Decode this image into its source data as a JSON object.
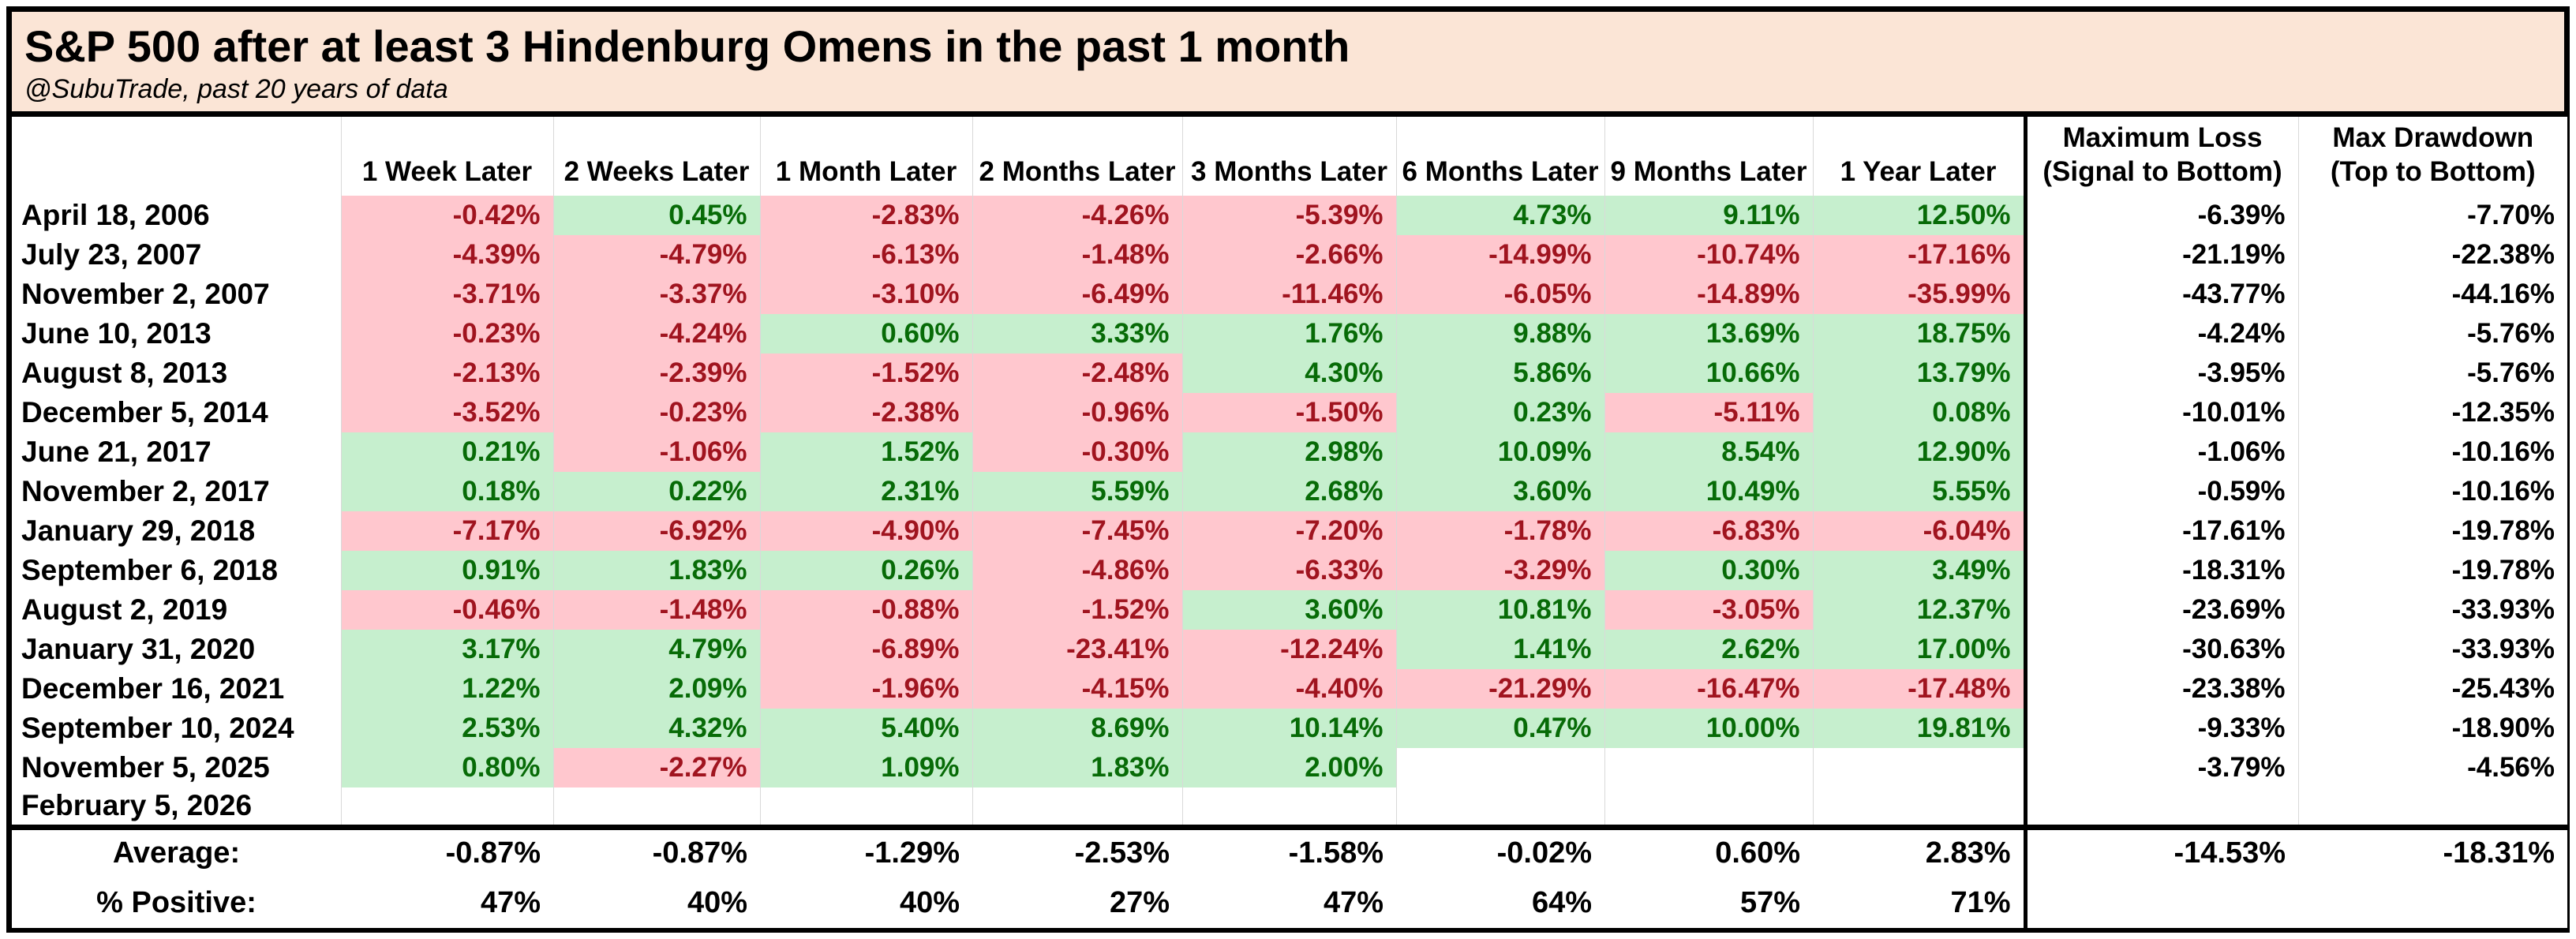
{
  "chart_data": {
    "type": "table",
    "title": "S&P 500 after at least 3 Hindenburg Omens in the past 1 month",
    "subtitle": "@SubuTrade, past 20 years of data",
    "date_column_header": "",
    "period_headers": [
      "1 Week Later",
      "2 Weeks Later",
      "1 Month Later",
      "2 Months Later",
      "3 Months Later",
      "6 Months Later",
      "9 Months Later",
      "1 Year Later"
    ],
    "loss_headers": [
      {
        "line1": "Maximum Loss",
        "line2": "(Signal to Bottom)"
      },
      {
        "line1": "Max Drawdown",
        "line2": "(Top to Bottom)"
      }
    ],
    "rows": [
      {
        "date": "April 18, 2006",
        "returns": [
          -0.42,
          0.45,
          -2.83,
          -4.26,
          -5.39,
          4.73,
          9.11,
          12.5
        ],
        "max_loss": -6.39,
        "max_drawdown": -7.7
      },
      {
        "date": "July 23, 2007",
        "returns": [
          -4.39,
          -4.79,
          -6.13,
          -1.48,
          -2.66,
          -14.99,
          -10.74,
          -17.16
        ],
        "max_loss": -21.19,
        "max_drawdown": -22.38
      },
      {
        "date": "November 2, 2007",
        "returns": [
          -3.71,
          -3.37,
          -3.1,
          -6.49,
          -11.46,
          -6.05,
          -14.89,
          -35.99
        ],
        "max_loss": -43.77,
        "max_drawdown": -44.16
      },
      {
        "date": "June 10, 2013",
        "returns": [
          -0.23,
          -4.24,
          0.6,
          3.33,
          1.76,
          9.88,
          13.69,
          18.75
        ],
        "max_loss": -4.24,
        "max_drawdown": -5.76
      },
      {
        "date": "August 8, 2013",
        "returns": [
          -2.13,
          -2.39,
          -1.52,
          -2.48,
          4.3,
          5.86,
          10.66,
          13.79
        ],
        "max_loss": -3.95,
        "max_drawdown": -5.76
      },
      {
        "date": "December 5, 2014",
        "returns": [
          -3.52,
          -0.23,
          -2.38,
          -0.96,
          -1.5,
          0.23,
          -5.11,
          0.08
        ],
        "max_loss": -10.01,
        "max_drawdown": -12.35
      },
      {
        "date": "June 21, 2017",
        "returns": [
          0.21,
          -1.06,
          1.52,
          -0.3,
          2.98,
          10.09,
          8.54,
          12.9
        ],
        "max_loss": -1.06,
        "max_drawdown": -10.16
      },
      {
        "date": "November 2, 2017",
        "returns": [
          0.18,
          0.22,
          2.31,
          5.59,
          2.68,
          3.6,
          10.49,
          5.55
        ],
        "max_loss": -0.59,
        "max_drawdown": -10.16
      },
      {
        "date": "January 29, 2018",
        "returns": [
          -7.17,
          -6.92,
          -4.9,
          -7.45,
          -7.2,
          -1.78,
          -6.83,
          -6.04
        ],
        "max_loss": -17.61,
        "max_drawdown": -19.78
      },
      {
        "date": "September 6, 2018",
        "returns": [
          0.91,
          1.83,
          0.26,
          -4.86,
          -6.33,
          -3.29,
          0.3,
          3.49
        ],
        "max_loss": -18.31,
        "max_drawdown": -19.78
      },
      {
        "date": "August 2, 2019",
        "returns": [
          -0.46,
          -1.48,
          -0.88,
          -1.52,
          3.6,
          10.81,
          -3.05,
          12.37
        ],
        "max_loss": -23.69,
        "max_drawdown": -33.93
      },
      {
        "date": "January 31, 2020",
        "returns": [
          3.17,
          4.79,
          -6.89,
          -23.41,
          -12.24,
          1.41,
          2.62,
          17.0
        ],
        "max_loss": -30.63,
        "max_drawdown": -33.93
      },
      {
        "date": "December 16, 2021",
        "returns": [
          1.22,
          2.09,
          -1.96,
          -4.15,
          -4.4,
          -21.29,
          -16.47,
          -17.48
        ],
        "max_loss": -23.38,
        "max_drawdown": -25.43
      },
      {
        "date": "September 10, 2024",
        "returns": [
          2.53,
          4.32,
          5.4,
          8.69,
          10.14,
          0.47,
          10.0,
          19.81
        ],
        "max_loss": -9.33,
        "max_drawdown": -18.9
      },
      {
        "date": "November 5, 2025",
        "returns": [
          0.8,
          -2.27,
          1.09,
          1.83,
          2.0,
          null,
          null,
          null
        ],
        "max_loss": -3.79,
        "max_drawdown": -4.56
      },
      {
        "date": "February 5, 2026",
        "returns": [
          null,
          null,
          null,
          null,
          null,
          null,
          null,
          null
        ],
        "max_loss": null,
        "max_drawdown": null
      }
    ],
    "average_row": {
      "label": "Average:",
      "returns": [
        -0.87,
        -0.87,
        -1.29,
        -2.53,
        -1.58,
        -0.02,
        0.6,
        2.83
      ],
      "max_loss": -14.53,
      "max_drawdown": -18.31
    },
    "percent_positive_row": {
      "label": "% Positive:",
      "values": [
        47,
        40,
        40,
        27,
        47,
        64,
        57,
        71
      ]
    }
  },
  "colors": {
    "title_band_bg": "#fbe5d6",
    "summary_label_bg": "#fbe5d6",
    "positive_fill": "#c6efce",
    "negative_fill": "#ffc7ce",
    "positive_text": "#076b07",
    "negative_text": "#a0141f",
    "gridline": "#d9d9d9",
    "border": "#000000"
  }
}
